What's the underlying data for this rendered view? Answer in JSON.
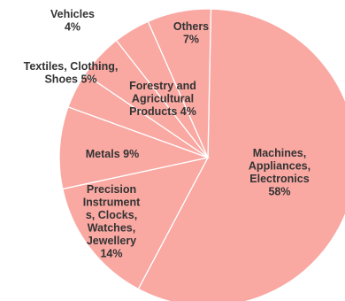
{
  "chart_data": {
    "type": "pie",
    "slice_color": "#f9a8a2",
    "series": [
      {
        "values": [
          58,
          14,
          9,
          4,
          5,
          4,
          7
        ],
        "categories": [
          "Machines, Appliances, Electronics",
          "Precision Instruments, Clocks, Watches, Jewellery",
          "Metals",
          "Forestry and Agricultural Products",
          "Textiles, Clothing, Shoes",
          "Vehicles",
          "Others"
        ]
      }
    ],
    "labels": [
      {
        "lines": [
          "Machines,",
          "Appliances,",
          "Electronics",
          "58%"
        ]
      },
      {
        "lines": [
          "Precision",
          "Instrument",
          "s, Clocks,",
          "Watches,",
          "Jewellery",
          "14%"
        ]
      },
      {
        "lines": [
          "Metals 9%"
        ]
      },
      {
        "lines": [
          "Forestry and",
          "Agricultural",
          "Products 4%"
        ]
      },
      {
        "lines": [
          "Textiles, Clothing,",
          "Shoes  5%"
        ]
      },
      {
        "lines": [
          "Vehicles",
          "4%"
        ]
      },
      {
        "lines": [
          "Others",
          "7%"
        ]
      }
    ]
  }
}
